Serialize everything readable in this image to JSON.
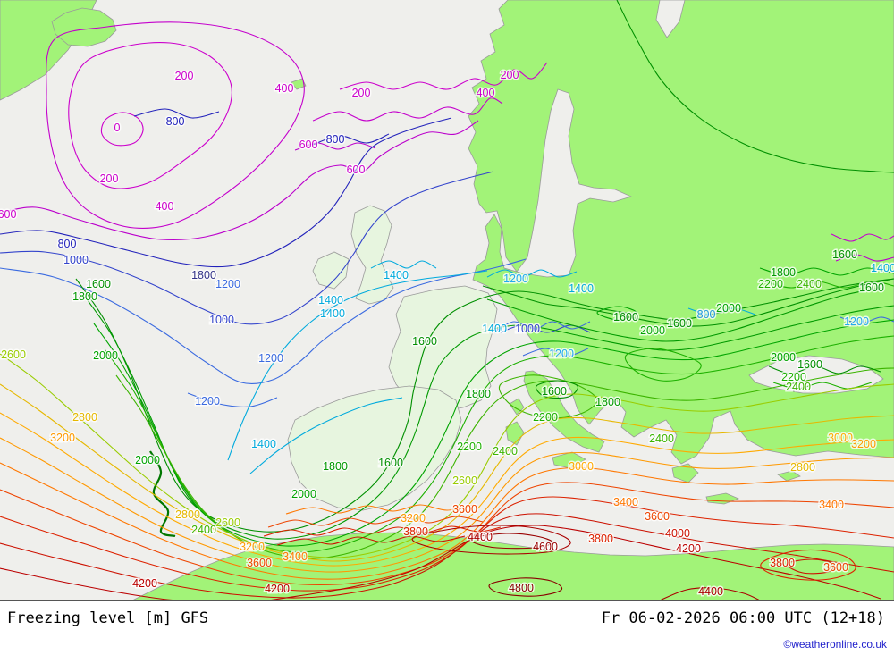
{
  "footer": {
    "title": "Freezing level [m] GFS",
    "datetime": "Fr 06-02-2026 06:00 UTC (12+18)",
    "copyright": "©weatheronline.co.uk"
  },
  "map": {
    "colors": {
      "sea": "#efefec",
      "land": "#a2f378",
      "land_pale": "#e7f5df",
      "coast": "#9a9a9a"
    },
    "unit": "m",
    "model": "GFS",
    "level_colors": {
      "0": "#cc00cc",
      "200": "#cc00cc",
      "400": "#c400cc",
      "600": "#bb00cc",
      "800": "#2222bb",
      "1000": "#3344cc",
      "1200": "#3a6ae0",
      "1400": "#00aadd",
      "1600": "#008f00",
      "1800": "#009900",
      "2000": "#00a400",
      "2200": "#1db000",
      "2400": "#3cb400",
      "2600": "#99cc00",
      "2800": "#e6b800",
      "3000": "#ffaa00",
      "3200": "#ff9900",
      "3400": "#ff7700",
      "3600": "#ee4400",
      "3800": "#dd2200",
      "4000": "#cc1100",
      "4200": "#bb0000",
      "4400": "#aa0000",
      "4600": "#990000",
      "4800": "#880000"
    },
    "labels": [
      [
        "0",
        131,
        143,
        "#cc00cc"
      ],
      [
        "200",
        206,
        85,
        "#cc00cc"
      ],
      [
        "200",
        122,
        200,
        "#cc00cc"
      ],
      [
        "200",
        404,
        104,
        "#cc00cc"
      ],
      [
        "200",
        570,
        84,
        "#cc00cc"
      ],
      [
        "400",
        318,
        99,
        "#cc00cc"
      ],
      [
        "400",
        543,
        104,
        "#cc00cc"
      ],
      [
        "400",
        184,
        231,
        "#cc00cc"
      ],
      [
        "600",
        345,
        162,
        "#cc00cc"
      ],
      [
        "600",
        398,
        190,
        "#cc00cc"
      ],
      [
        "600",
        8,
        240,
        "#cc00cc"
      ],
      [
        "800",
        196,
        136,
        "#2222bb"
      ],
      [
        "800",
        375,
        156,
        "#2222bb"
      ],
      [
        "800",
        75,
        273,
        "#2222bb"
      ],
      [
        "1000",
        85,
        291,
        "#3344cc"
      ],
      [
        "1800",
        228,
        308,
        "#333388"
      ],
      [
        "1000",
        248,
        358,
        "#3344cc"
      ],
      [
        "1200",
        255,
        318,
        "#3a6ae0"
      ],
      [
        "1200",
        303,
        401,
        "#3a6ae0"
      ],
      [
        "1200",
        232,
        449,
        "#3a6ae0"
      ],
      [
        "1000",
        590,
        368,
        "#3344cc"
      ],
      [
        "1400",
        370,
        336,
        "#00aadd"
      ],
      [
        "1400",
        372,
        351,
        "#00aadd"
      ],
      [
        "1400",
        295,
        497,
        "#00aadd"
      ],
      [
        "1400",
        443,
        308,
        "#00aadd"
      ],
      [
        "1200",
        577,
        312,
        "#22aaee"
      ],
      [
        "1400",
        650,
        323,
        "#00aadd"
      ],
      [
        "1200",
        628,
        396,
        "#22aaee"
      ],
      [
        "1400",
        553,
        368,
        "#00aadd"
      ],
      [
        "1200",
        958,
        360,
        "#22aaee"
      ],
      [
        "800",
        790,
        352,
        "#2299dd"
      ],
      [
        "1400",
        988,
        300,
        "#00aadd"
      ],
      [
        "1600",
        110,
        318,
        "#008f00"
      ],
      [
        "1800",
        95,
        332,
        "#009900"
      ],
      [
        "1600",
        475,
        382,
        "#008f00"
      ],
      [
        "1600",
        700,
        355,
        "#008f00"
      ],
      [
        "1600",
        760,
        362,
        "#008f00"
      ],
      [
        "1600",
        945,
        285,
        "#008f00"
      ],
      [
        "1600",
        975,
        322,
        "#008f00"
      ],
      [
        "1600",
        906,
        408,
        "#008f00"
      ],
      [
        "1600",
        620,
        438,
        "#008f00"
      ],
      [
        "1600",
        437,
        518,
        "#008f00"
      ],
      [
        "1800",
        375,
        522,
        "#009900"
      ],
      [
        "1800",
        535,
        441,
        "#009900"
      ],
      [
        "1800",
        680,
        450,
        "#009900"
      ],
      [
        "1800",
        876,
        305,
        "#009900"
      ],
      [
        "2000",
        118,
        398,
        "#00a400"
      ],
      [
        "2000",
        165,
        515,
        "#00a400"
      ],
      [
        "2000",
        340,
        553,
        "#00a400"
      ],
      [
        "2000",
        730,
        370,
        "#00a400"
      ],
      [
        "2000",
        815,
        345,
        "#00a400"
      ],
      [
        "2000",
        876,
        400,
        "#00a400"
      ],
      [
        "2200",
        610,
        467,
        "#1db000"
      ],
      [
        "2200",
        525,
        500,
        "#1db000"
      ],
      [
        "2200",
        862,
        318,
        "#1db000"
      ],
      [
        "2200",
        888,
        422,
        "#1db000"
      ],
      [
        "2400",
        565,
        505,
        "#3cb400"
      ],
      [
        "2400",
        740,
        491,
        "#3cb400"
      ],
      [
        "2400",
        905,
        318,
        "#3cb400"
      ],
      [
        "2400",
        893,
        433,
        "#3cb400"
      ],
      [
        "2400",
        228,
        593,
        "#3cb400"
      ],
      [
        "2600",
        15,
        397,
        "#99cc00"
      ],
      [
        "2600",
        255,
        585,
        "#99cc00"
      ],
      [
        "2600",
        520,
        538,
        "#99cc00"
      ],
      [
        "2800",
        210,
        576,
        "#e6b800"
      ],
      [
        "2800",
        95,
        467,
        "#e6b800"
      ],
      [
        "2800",
        898,
        523,
        "#e6b800"
      ],
      [
        "3000",
        650,
        522,
        "#ffaa00"
      ],
      [
        "3000",
        940,
        490,
        "#ffaa00"
      ],
      [
        "3200",
        70,
        490,
        "#ff9900"
      ],
      [
        "3200",
        282,
        612,
        "#ff9900"
      ],
      [
        "3200",
        966,
        497,
        "#ff9900"
      ],
      [
        "3200",
        462,
        580,
        "#ff9900"
      ],
      [
        "3400",
        330,
        623,
        "#ff7700"
      ],
      [
        "3400",
        700,
        562,
        "#ff7700"
      ],
      [
        "3400",
        930,
        565,
        "#ff7700"
      ],
      [
        "3600",
        290,
        630,
        "#ee4400"
      ],
      [
        "3600",
        520,
        570,
        "#ee4400"
      ],
      [
        "3600",
        735,
        578,
        "#ee4400"
      ],
      [
        "3600",
        935,
        635,
        "#ee4400"
      ],
      [
        "3800",
        465,
        595,
        "#dd2200"
      ],
      [
        "3800",
        672,
        603,
        "#dd2200"
      ],
      [
        "3800",
        875,
        630,
        "#dd2200"
      ],
      [
        "4000",
        758,
        597,
        "#cc1100"
      ],
      [
        "4200",
        162,
        653,
        "#bb0000"
      ],
      [
        "4200",
        310,
        659,
        "#bb0000"
      ],
      [
        "4200",
        770,
        614,
        "#bb0000"
      ],
      [
        "4400",
        537,
        601,
        "#aa0000"
      ],
      [
        "4400",
        795,
        662,
        "#aa0000"
      ],
      [
        "4600",
        610,
        612,
        "#990000"
      ],
      [
        "4800",
        583,
        658,
        "#880000"
      ]
    ]
  }
}
